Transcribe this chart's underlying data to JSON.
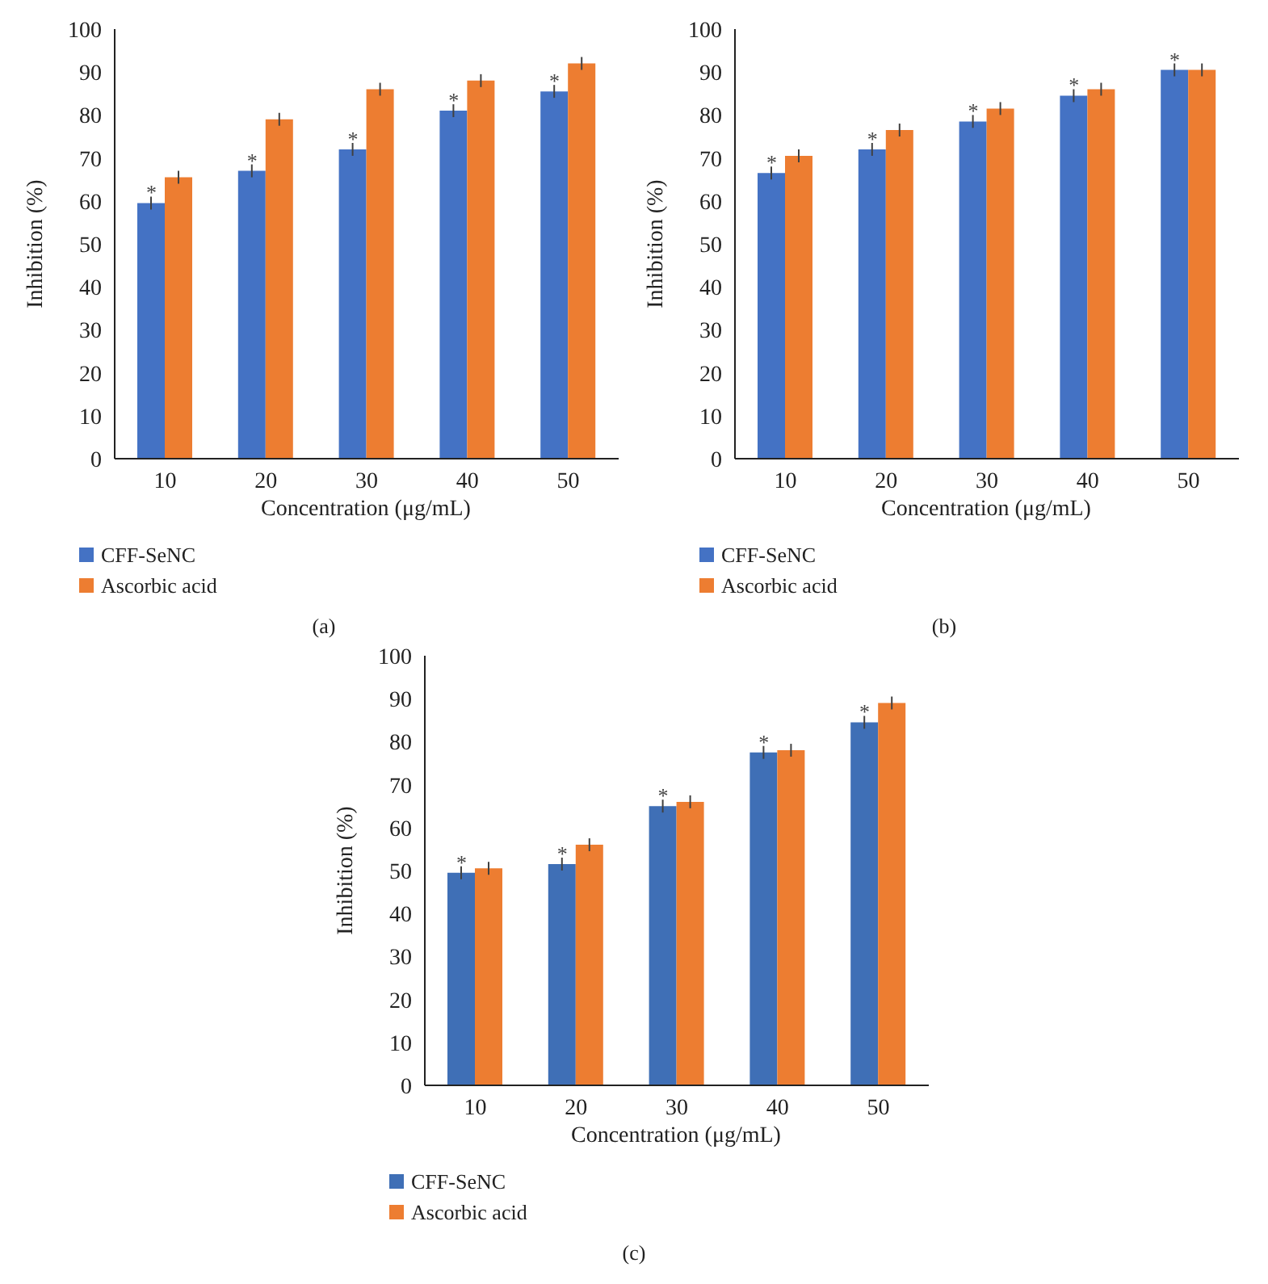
{
  "chart_data": [
    {
      "type": "bar",
      "categories": [
        "10",
        "20",
        "30",
        "40",
        "50"
      ],
      "xlabel": "Concentration (μg/mL)",
      "ylabel": "Inhibition (%)",
      "ylim": [
        0,
        100
      ],
      "yticks": [
        0,
        10,
        20,
        30,
        40,
        50,
        60,
        70,
        80,
        90,
        100
      ],
      "grid": false,
      "legend": "bottom left",
      "series": [
        {
          "name": "CFF-SeNC",
          "color": "#4472c4",
          "values": [
            59.5,
            67,
            72,
            81,
            85.5
          ],
          "errors": [
            1.5,
            1.5,
            1.5,
            1.5,
            1.5
          ]
        },
        {
          "name": "Ascorbic acid",
          "color": "#ed7d31",
          "values": [
            65.5,
            79,
            86,
            88,
            92
          ],
          "errors": [
            1.5,
            1.5,
            1.5,
            1.5,
            1.5
          ]
        }
      ],
      "annotations": [
        "(a)",
        {
          "text": "*",
          "x": "10",
          "y": 61
        },
        {
          "text": "*",
          "x": "20",
          "y": 68.5
        },
        {
          "text": "*",
          "x": "30",
          "y": 73.5
        },
        {
          "text": "*",
          "x": "40",
          "y": 82.5
        },
        {
          "text": "*",
          "x": "50",
          "y": 87
        }
      ]
    },
    {
      "type": "bar",
      "categories": [
        "10",
        "20",
        "30",
        "40",
        "50"
      ],
      "xlabel": "Concentration (μg/mL)",
      "ylabel": "Inhibition (%)",
      "ylim": [
        0,
        100
      ],
      "yticks": [
        0,
        10,
        20,
        30,
        40,
        50,
        60,
        70,
        80,
        90,
        100
      ],
      "grid": false,
      "legend": "bottom left",
      "series": [
        {
          "name": "CFF-SeNC",
          "color": "#4472c4",
          "values": [
            66.5,
            72,
            78.5,
            84.5,
            90.5
          ],
          "errors": [
            1.5,
            1.5,
            1.5,
            1.5,
            1.5
          ]
        },
        {
          "name": "Ascorbic acid",
          "color": "#ed7d31",
          "values": [
            70.5,
            76.5,
            81.5,
            86,
            90.5
          ],
          "errors": [
            1.5,
            1.5,
            1.5,
            1.5,
            1.5
          ]
        }
      ],
      "annotations": [
        "(b)",
        {
          "text": "*",
          "x": "10",
          "y": 68
        },
        {
          "text": "*",
          "x": "20",
          "y": 73.5
        },
        {
          "text": "*",
          "x": "30",
          "y": 80
        },
        {
          "text": "*",
          "x": "40",
          "y": 86
        },
        {
          "text": "*",
          "x": "50",
          "y": 92
        }
      ]
    },
    {
      "type": "bar",
      "categories": [
        "10",
        "20",
        "30",
        "40",
        "50"
      ],
      "xlabel": "Concentration (μg/mL)",
      "ylabel": "Inhibition (%)",
      "ylim": [
        0,
        100
      ],
      "yticks": [
        0,
        10,
        20,
        30,
        40,
        50,
        60,
        70,
        80,
        90,
        100
      ],
      "grid": false,
      "legend": "bottom left",
      "series": [
        {
          "name": "CFF-SeNC",
          "color": "#3f6fb6",
          "values": [
            49.5,
            51.5,
            65,
            77.5,
            84.5
          ],
          "errors": [
            1.5,
            1.5,
            1.5,
            1.5,
            1.5
          ]
        },
        {
          "name": "Ascorbic acid",
          "color": "#ed7d31",
          "values": [
            50.5,
            56,
            66,
            78,
            89
          ],
          "errors": [
            1.5,
            1.5,
            1.5,
            1.5,
            1.5
          ]
        }
      ],
      "annotations": [
        "(c)",
        {
          "text": "*",
          "x": "10",
          "y": 51
        },
        {
          "text": "*",
          "x": "20",
          "y": 53
        },
        {
          "text": "*",
          "x": "30",
          "y": 66.5
        },
        {
          "text": "*",
          "x": "40",
          "y": 79
        },
        {
          "text": "*",
          "x": "50",
          "y": 86
        }
      ]
    }
  ]
}
